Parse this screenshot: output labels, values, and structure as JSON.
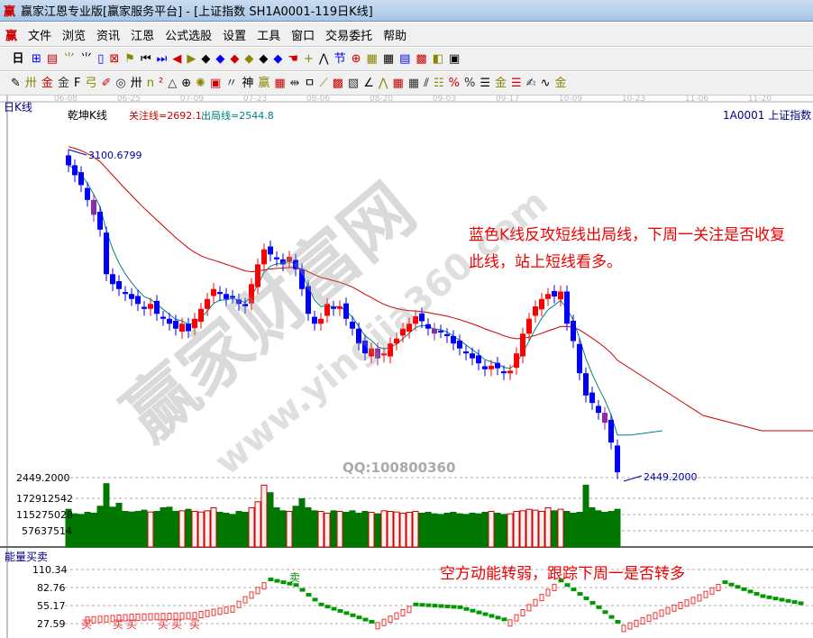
{
  "window": {
    "title": "赢家江恩专业版[赢家服务平台] - [上证指数  SH1A0001-119日K线]",
    "logo": "赢"
  },
  "menu": [
    "文件",
    "浏览",
    "资讯",
    "江恩",
    "公式选股",
    "设置",
    "工具",
    "窗口",
    "交易委托",
    "帮助"
  ],
  "toolbar1": {
    "period": "日",
    "icons": [
      "quote-icon",
      "f10-icon",
      "indicator3-icon",
      "indicator9-icon",
      "candle-icon",
      "gann-icon",
      "flag-icon",
      "first-icon",
      "last-icon",
      "left-icon",
      "right-icon",
      "zoom1-icon",
      "zoom2-icon",
      "zoom3-icon",
      "zoom4-icon",
      "zoom5-icon",
      "zoom6-icon",
      "hand-icon",
      "crosshair-icon",
      "line-icon",
      "node-icon",
      "cycle-icon",
      "calendar-icon",
      "calculator-icon",
      "report-icon",
      "save-icon",
      "network-icon",
      "print-icon"
    ]
  },
  "toolbar2": {
    "icons": [
      "pen-icon",
      "parallel-icon",
      "gold1-icon",
      "gold2-icon",
      "fib-icon",
      "spiral-icon",
      "eraser-icon",
      "circle-icon",
      "grid-icon",
      "n2-icon",
      "angle-icon",
      "target-icon",
      "star-icon",
      "square-icon",
      "fan-icon",
      "shen-icon",
      "ying-icon",
      "box-icon",
      "width-icon",
      "rect-icon",
      "rays-icon",
      "cube-icon",
      "box2-icon",
      "angle2-icon",
      "wave-icon",
      "grid2-icon",
      "grid3-icon",
      "parallel2-icon",
      "table-icon",
      "pct-line-icon",
      "percent-icon",
      "pct-lines-icon",
      "gold-circle-icon",
      "gold-lines-icon",
      "pencil-icon",
      "wave2-icon",
      "gold3-icon",
      "angle3-icon"
    ],
    "glyphs": "✎卅金金F弓✐◎卅n²△⊕✺▣〃神赢▦⇹ㅁ⟋▩▧∠⋀▦▦⫽☷%%☰金☰✍∿金∠"
  },
  "dates": [
    "06-08",
    "06-25",
    "07-09",
    "07-23",
    "08-06",
    "08-20",
    "09-03",
    "09-17",
    "10-09",
    "10-23",
    "11-06",
    "11-20"
  ],
  "chart": {
    "period_label": "日K线",
    "indicator": "乾坤K线",
    "watch_line": "关注线=2692.1",
    "exit_line": "出局线=2544.8",
    "symbol": "1A0001  上证指数",
    "high_label": "3100.6799",
    "low_label": "2449.2000",
    "low_axis": "2449.2000",
    "annotation1": "蓝色K线反攻短线出局线，下周一关注是否收复此线，站上短线看多。",
    "annotation2": "空方动能转弱，跟踪下周一是否转多",
    "watermark": "赢家财富网",
    "watermark_url": "www.yingjia360.com",
    "qq": "QQ:100800360",
    "colors": {
      "up": "#ff0000",
      "down": "#0000ff",
      "purple": "#8a2ba8",
      "watch": "#cc0000",
      "exit": "#008080",
      "vol_down": "#007700"
    }
  },
  "volume": {
    "ticks": [
      "172912542",
      "115275028",
      "57637514"
    ]
  },
  "energy": {
    "title": "能量买卖",
    "ticks": [
      "110.34",
      "82.76",
      "55.17",
      "27.59"
    ],
    "buy": "买",
    "sell": "卖"
  },
  "chart_data": {
    "type": "candlestick",
    "closes": [
      3080,
      3060,
      3040,
      3010,
      2980,
      2950,
      2860,
      2840,
      2830,
      2820,
      2810,
      2800,
      2790,
      2800,
      2780,
      2770,
      2760,
      2750,
      2760,
      2745,
      2770,
      2790,
      2810,
      2830,
      2820,
      2810,
      2815,
      2800,
      2795,
      2840,
      2880,
      2910,
      2900,
      2890,
      2880,
      2895,
      2870,
      2830,
      2780,
      2760,
      2770,
      2800,
      2790,
      2795,
      2770,
      2750,
      2720,
      2700,
      2710,
      2690,
      2700,
      2720,
      2730,
      2750,
      2760,
      2775,
      2765,
      2750,
      2740,
      2745,
      2735,
      2720,
      2710,
      2700,
      2690,
      2680,
      2668,
      2675,
      2670,
      2660,
      2665,
      2700,
      2740,
      2770,
      2795,
      2810,
      2820,
      2815,
      2825,
      2760,
      2725,
      2660,
      2615,
      2600,
      2580,
      2560,
      2520,
      2460
    ],
    "volumes": [
      125,
      110,
      108,
      115,
      112,
      135,
      210,
      132,
      145,
      118,
      116,
      118,
      122,
      116,
      118,
      130,
      132,
      118,
      120,
      125,
      118,
      116,
      120,
      130,
      115,
      112,
      108,
      118,
      115,
      130,
      150,
      205,
      180,
      130,
      120,
      118,
      135,
      160,
      130,
      120,
      118,
      112,
      120,
      118,
      115,
      120,
      112,
      118,
      115,
      110,
      120,
      118,
      116,
      112,
      115,
      118,
      112,
      115,
      110,
      108,
      112,
      115,
      110,
      108,
      112,
      110,
      115,
      118,
      112,
      108,
      110,
      118,
      120,
      125,
      122,
      118,
      130,
      120,
      125,
      118,
      112,
      115,
      205,
      130,
      120,
      115,
      118,
      125
    ],
    "energy_points": [
      [
        3,
        20
      ],
      [
        10,
        25
      ],
      [
        20,
        28
      ],
      [
        26,
        40
      ],
      [
        32,
        90
      ],
      [
        36,
        80
      ],
      [
        40,
        45
      ],
      [
        49,
        10
      ],
      [
        55,
        45
      ],
      [
        62,
        40
      ],
      [
        70,
        15
      ],
      [
        78,
        88
      ],
      [
        84,
        40
      ],
      [
        88,
        5
      ],
      [
        100,
        60
      ],
      [
        104,
        85
      ],
      [
        110,
        60
      ],
      [
        117,
        45
      ]
    ]
  }
}
